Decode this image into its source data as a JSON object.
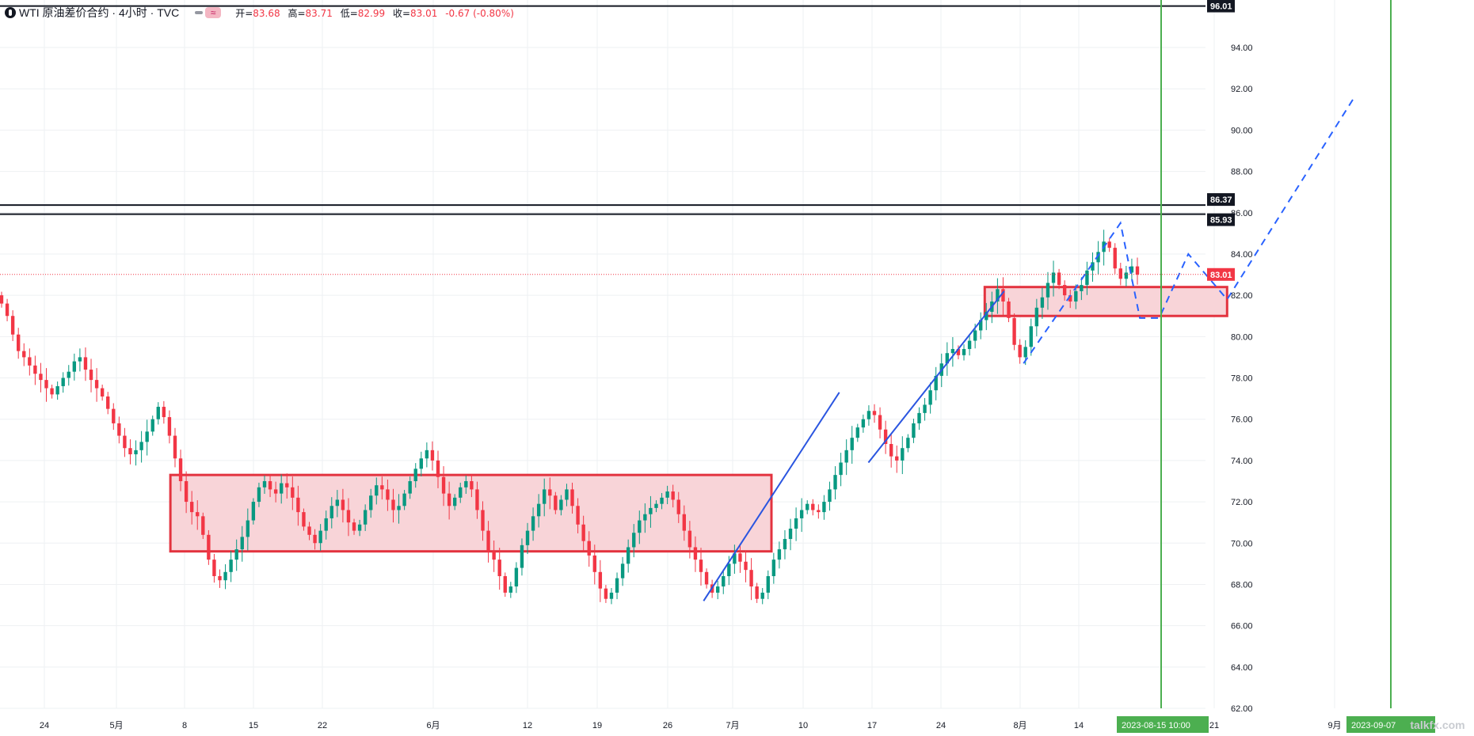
{
  "legend": {
    "symbol": "WTI 原油差价合约 · 4小时 · TVC",
    "open_label": "开=",
    "open": "83.68",
    "high_label": "高=",
    "high": "83.71",
    "low_label": "低=",
    "low": "82.99",
    "close_label": "收=",
    "close": "83.01",
    "change": "-0.67 (-0.80%)",
    "toggle_icon": "compare-toggle-icon"
  },
  "colors": {
    "up": "#089981",
    "down": "#f23645",
    "zone_fill": "#f8d4d8",
    "zone_stroke": "#e3333f",
    "trend": "#2a55e0",
    "projection": "#2962ff",
    "vline": "#4caf50",
    "hline": "#131722",
    "axis_text": "#131722",
    "grid": "#eef0f3",
    "price_tag": "#f23645"
  },
  "chart_data": {
    "type": "candlestick",
    "x_tick_labels": [
      "24",
      "5月",
      "8",
      "15",
      "22",
      "6月",
      "12",
      "19",
      "26",
      "7月",
      "10",
      "17",
      "24",
      "8月",
      "14",
      "21",
      "9月"
    ],
    "y_ticks": [
      "62.00",
      "64.00",
      "66.00",
      "68.00",
      "70.00",
      "72.00",
      "74.00",
      "76.00",
      "78.00",
      "80.00",
      "82.00",
      "84.00",
      "86.00",
      "88.00",
      "90.00",
      "92.00",
      "94.00"
    ],
    "ylim": [
      62,
      96.3
    ],
    "price_series": [
      81.6,
      81.0,
      80.1,
      79.3,
      79.0,
      78.6,
      78.2,
      77.9,
      77.5,
      77.2,
      77.6,
      78.0,
      78.3,
      78.8,
      79.0,
      78.4,
      77.9,
      77.5,
      77.1,
      76.5,
      75.8,
      75.2,
      74.6,
      74.3,
      74.5,
      74.9,
      75.4,
      76.0,
      76.6,
      76.1,
      75.2,
      74.1,
      73.0,
      72.0,
      71.5,
      71.3,
      70.4,
      69.2,
      68.4,
      68.2,
      68.6,
      69.2,
      69.7,
      70.3,
      71.1,
      72.0,
      72.7,
      73.0,
      72.6,
      72.4,
      72.9,
      72.7,
      72.2,
      71.5,
      70.8,
      70.4,
      70.0,
      70.6,
      71.2,
      71.8,
      72.1,
      71.6,
      71.0,
      70.6,
      70.9,
      71.6,
      72.3,
      72.8,
      72.6,
      72.1,
      71.6,
      71.8,
      72.4,
      73.0,
      73.6,
      74.1,
      74.5,
      74.0,
      73.2,
      72.4,
      71.8,
      72.2,
      72.7,
      73.0,
      72.6,
      71.6,
      70.6,
      69.6,
      69.2,
      68.4,
      67.6,
      67.9,
      68.8,
      69.9,
      70.6,
      71.3,
      71.9,
      72.6,
      72.3,
      71.6,
      72.1,
      72.6,
      71.8,
      70.9,
      70.1,
      69.4,
      68.6,
      67.8,
      67.3,
      67.6,
      68.3,
      69.0,
      69.8,
      70.5,
      71.1,
      71.4,
      71.7,
      71.9,
      72.2,
      72.5,
      72.1,
      71.4,
      70.6,
      69.8,
      69.2,
      68.6,
      68.0,
      67.6,
      67.9,
      68.4,
      69.0,
      69.5,
      69.1,
      68.7,
      67.9,
      67.3,
      67.6,
      68.4,
      69.2,
      69.7,
      70.2,
      70.7,
      71.2,
      71.6,
      71.9,
      71.6,
      71.5,
      72.0,
      72.6,
      73.3,
      73.9,
      74.5,
      75.1,
      75.6,
      76.0,
      76.4,
      76.2,
      75.5,
      74.8,
      74.2,
      74.0,
      74.6,
      75.1,
      75.8,
      76.3,
      76.7,
      77.4,
      78.1,
      78.7,
      79.2,
      79.4,
      79.1,
      79.4,
      79.8,
      80.3,
      80.8,
      81.2,
      81.7,
      82.3,
      81.7,
      80.9,
      79.6,
      79.0,
      79.5,
      80.5,
      81.4,
      81.9,
      82.6,
      83.1,
      82.5,
      82.0,
      81.7,
      82.2,
      82.5,
      83.2,
      83.6,
      84.1,
      84.6,
      84.3,
      83.3,
      82.8,
      83.1,
      83.4,
      83.0
    ],
    "series": [
      {
        "name": "",
        "role": "consolidation-zone",
        "x": [
          "5月7日",
          "7月8日"
        ],
        "y": [
          69.6,
          73.3
        ]
      },
      {
        "name": "",
        "role": "breakout-zone",
        "x": [
          "7月30日",
          "8月24日"
        ],
        "y": [
          81.0,
          82.4
        ]
      },
      {
        "name": "",
        "role": "uptrend-line",
        "x": [
          "7月1日",
          "7月15日"
        ],
        "y": [
          67.2,
          77.3
        ]
      },
      {
        "name": "",
        "role": "uptrend-line",
        "x": [
          "7月18日",
          "8月1日"
        ],
        "y": [
          73.9,
          82.2
        ]
      },
      {
        "name": "",
        "role": "projection",
        "x": [
          "8月3日",
          "8月13日",
          "8月15日",
          "8月17日",
          "8月20日",
          "8月24日",
          "9月6日"
        ],
        "y": [
          78.7,
          85.5,
          80.9,
          80.9,
          84.0,
          81.8,
          91.5
        ]
      }
    ],
    "horizontal_levels": [
      "96.01",
      "86.37",
      "85.93"
    ],
    "last_price": "83.01",
    "vertical_markers": [
      "2023-08-15   10:00",
      "2023-09-07"
    ],
    "watermark": "talkfx.com"
  }
}
